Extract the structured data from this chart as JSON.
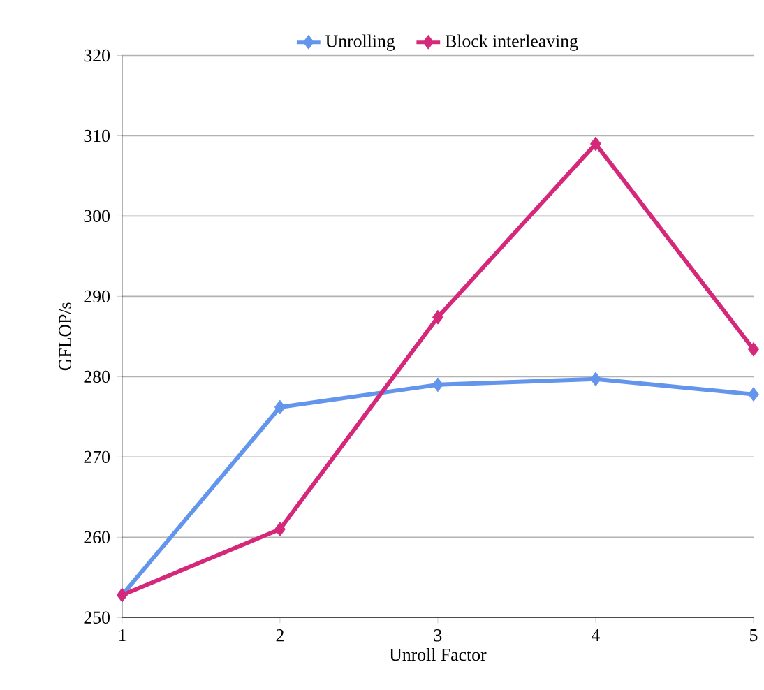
{
  "chart_data": {
    "type": "line",
    "xlabel": "Unroll Factor",
    "ylabel": "GFLOP/s",
    "x": [
      1,
      2,
      3,
      4,
      5
    ],
    "series": [
      {
        "name": "Unrolling",
        "color": "#6495ed",
        "values": [
          252.8,
          276.2,
          279.0,
          279.7,
          277.8
        ]
      },
      {
        "name": "Block interleaving",
        "color": "#d6287a",
        "values": [
          252.8,
          261.0,
          287.4,
          309.0,
          283.4
        ]
      }
    ],
    "xlim": [
      1,
      5
    ],
    "xticks": [
      1,
      2,
      3,
      4,
      5
    ],
    "ylim": [
      250,
      320
    ],
    "yticks": [
      250,
      260,
      270,
      280,
      290,
      300,
      310,
      320
    ],
    "grid": "y",
    "legend": "top",
    "marker": "diamond",
    "line_style": "solid"
  }
}
